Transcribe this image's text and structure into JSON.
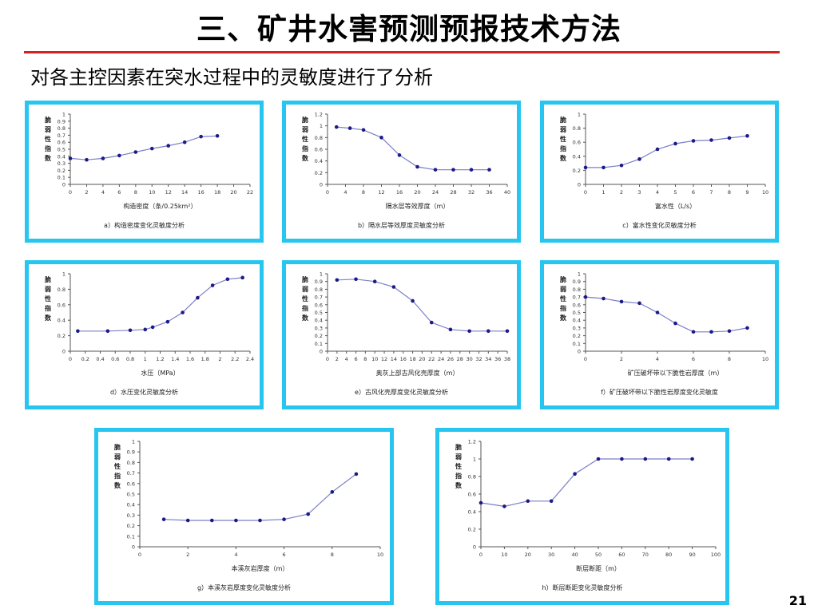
{
  "slide": {
    "title": "三、矿井水害预测预报技术方法",
    "subtitle": "对各主控因素在突水过程中的灵敏度进行了分析",
    "page_number": "21",
    "accent_color": "#26c6f0",
    "rule_color": "#d22222"
  },
  "chart_data": [
    {
      "type": "line",
      "ylabel": "脆弱性指数",
      "xlabel": "构造密度（条/0.25km²）",
      "caption": "a）构造密度变化灵敏度分析",
      "xlim": [
        0,
        22
      ],
      "ylim": [
        0,
        1
      ],
      "xticks": [
        0,
        2,
        4,
        6,
        8,
        10,
        12,
        14,
        16,
        18,
        20,
        22
      ],
      "yticks": [
        0,
        0.1,
        0.2,
        0.3,
        0.4,
        0.5,
        0.6,
        0.7,
        0.8,
        0.9,
        1
      ],
      "x": [
        0,
        2,
        4,
        6,
        8,
        10,
        12,
        14,
        16,
        18
      ],
      "y": [
        0.37,
        0.35,
        0.37,
        0.41,
        0.46,
        0.51,
        0.55,
        0.6,
        0.68,
        0.69
      ]
    },
    {
      "type": "line",
      "ylabel": "脆弱性指数",
      "xlabel": "隔水层等效厚度（m）",
      "caption": "b）隔水层等效厚度灵敏度分析",
      "xlim": [
        0,
        40
      ],
      "ylim": [
        0,
        1.2
      ],
      "xticks": [
        0,
        4,
        8,
        12,
        16,
        20,
        24,
        28,
        32,
        36,
        40
      ],
      "yticks": [
        0,
        0.2,
        0.4,
        0.6,
        0.8,
        1,
        1.2
      ],
      "x": [
        2,
        5,
        8,
        12,
        16,
        20,
        24,
        28,
        32,
        36
      ],
      "y": [
        0.98,
        0.96,
        0.93,
        0.8,
        0.5,
        0.3,
        0.25,
        0.25,
        0.25,
        0.25
      ]
    },
    {
      "type": "line",
      "ylabel": "脆弱性指数",
      "xlabel": "富水性（L/s）",
      "caption": "c）富水性变化灵敏度分析",
      "xlim": [
        0,
        10
      ],
      "ylim": [
        0,
        1
      ],
      "xticks": [
        0,
        1,
        2,
        3,
        4,
        5,
        6,
        7,
        8,
        9,
        10
      ],
      "yticks": [
        0,
        0.2,
        0.4,
        0.6,
        0.8,
        1
      ],
      "x": [
        0,
        1,
        2,
        3,
        4,
        5,
        6,
        7,
        8,
        9
      ],
      "y": [
        0.24,
        0.24,
        0.27,
        0.36,
        0.5,
        0.58,
        0.62,
        0.63,
        0.66,
        0.69
      ]
    },
    {
      "type": "line",
      "ylabel": "脆弱性指数",
      "xlabel": "水压（MPa）",
      "caption": "d）水压变化灵敏度分析",
      "xlim": [
        0,
        2.4
      ],
      "ylim": [
        0,
        1
      ],
      "xticks": [
        "0",
        "0.2",
        "0.4",
        "0.6",
        "0.8",
        "1",
        "1.2",
        "1.4",
        "1.6",
        "1.8",
        "2",
        "2.2",
        "2.4"
      ],
      "yticks": [
        0,
        0.2,
        0.4,
        0.6,
        0.8,
        1
      ],
      "x": [
        0.1,
        0.5,
        0.8,
        1,
        1.1,
        1.3,
        1.5,
        1.7,
        1.9,
        2.1,
        2.3
      ],
      "y": [
        0.26,
        0.26,
        0.27,
        0.28,
        0.31,
        0.38,
        0.5,
        0.69,
        0.85,
        0.93,
        0.95
      ]
    },
    {
      "type": "line",
      "ylabel": "脆弱性指数",
      "xlabel": "奥灰上部古风化壳厚度（m）",
      "caption": "e）古风化壳厚度变化灵敏度分析",
      "xlim": [
        0,
        38
      ],
      "ylim": [
        0,
        1
      ],
      "xticks": [
        0,
        2,
        4,
        6,
        8,
        10,
        12,
        14,
        16,
        18,
        20,
        22,
        24,
        26,
        28,
        30,
        32,
        34,
        36,
        38
      ],
      "yticks": [
        0,
        0.1,
        0.2,
        0.3,
        0.4,
        0.5,
        0.6,
        0.7,
        0.8,
        0.9,
        1
      ],
      "x": [
        2,
        6,
        10,
        14,
        18,
        22,
        26,
        30,
        34,
        38
      ],
      "y": [
        0.92,
        0.93,
        0.9,
        0.83,
        0.65,
        0.37,
        0.28,
        0.26,
        0.26,
        0.26
      ]
    },
    {
      "type": "line",
      "ylabel": "脆弱性指数",
      "xlabel": "矿压破坏带以下脆性岩厚度（m）",
      "caption": "f）矿压破坏带以下脆性岩厚度变化灵敏度",
      "xlim": [
        0,
        10
      ],
      "ylim": [
        0,
        1
      ],
      "xticks": [
        0,
        2,
        4,
        6,
        8,
        10
      ],
      "yticks": [
        0,
        0.1,
        0.2,
        0.3,
        0.4,
        0.5,
        0.6,
        0.7,
        0.8,
        0.9,
        1
      ],
      "x": [
        0,
        1,
        2,
        3,
        4,
        5,
        6,
        7,
        8,
        9
      ],
      "y": [
        0.7,
        0.68,
        0.64,
        0.62,
        0.5,
        0.36,
        0.25,
        0.25,
        0.26,
        0.3
      ]
    },
    {
      "type": "line",
      "ylabel": "脆弱性指数",
      "xlabel": "本溪灰岩厚度（m）",
      "caption": "g）本溪灰岩厚度变化灵敏度分析",
      "xlim": [
        0,
        10
      ],
      "ylim": [
        0,
        1
      ],
      "xticks": [
        0,
        2,
        4,
        6,
        8,
        10
      ],
      "yticks": [
        0,
        0.1,
        0.2,
        0.3,
        0.4,
        0.5,
        0.6,
        0.7,
        0.8,
        0.9,
        1
      ],
      "x": [
        1,
        2,
        3,
        4,
        5,
        6,
        7,
        8,
        9
      ],
      "y": [
        0.26,
        0.25,
        0.25,
        0.25,
        0.25,
        0.26,
        0.31,
        0.52,
        0.69
      ]
    },
    {
      "type": "line",
      "ylabel": "脆弱性指数",
      "xlabel": "断层断距（m）",
      "caption": "h）断层断距变化灵敏度分析",
      "xlim": [
        0,
        100
      ],
      "ylim": [
        0,
        1.2
      ],
      "xticks": [
        0,
        10,
        20,
        30,
        40,
        50,
        60,
        70,
        80,
        90,
        100
      ],
      "yticks": [
        0,
        0.2,
        0.4,
        0.6,
        0.8,
        1,
        1.2
      ],
      "x": [
        0,
        10,
        20,
        30,
        40,
        50,
        60,
        70,
        80,
        90
      ],
      "y": [
        0.5,
        0.46,
        0.52,
        0.52,
        0.83,
        1,
        1,
        1,
        1,
        1
      ]
    }
  ]
}
